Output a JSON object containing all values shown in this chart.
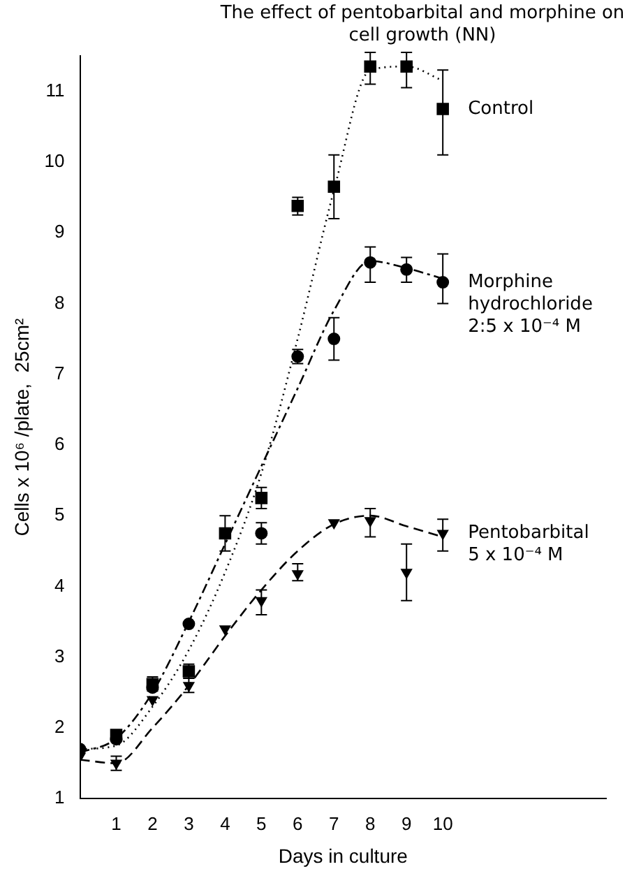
{
  "chart_data": {
    "type": "scatter",
    "title": "The effect of pentobarbital and morphine on cell growth (NN)",
    "xlabel": "Days in culture",
    "ylabel": "Cells x 10⁶ /plate,  25cm²",
    "x": [
      0,
      1,
      2,
      3,
      4,
      5,
      6,
      7,
      8,
      9,
      10
    ],
    "series": [
      {
        "name": "Control",
        "color": "#000000",
        "marker": "square",
        "values": [
          null,
          1.9,
          2.62,
          2.8,
          4.75,
          5.25,
          9.38,
          9.65,
          11.35,
          11.35,
          10.75
        ],
        "errors": [
          null,
          null,
          0.1,
          0.1,
          [
            4.5,
            5.0
          ],
          [
            5.1,
            5.4
          ],
          [
            9.25,
            9.5
          ],
          [
            9.2,
            10.1
          ],
          [
            11.1,
            11.55
          ],
          [
            11.05,
            11.55
          ],
          [
            10.1,
            11.3
          ]
        ]
      },
      {
        "name": "Morphine hydrochloride 2:5 x 10⁻⁴ M",
        "color": "#000000",
        "marker": "circle",
        "values": [
          1.7,
          1.84,
          2.57,
          3.47,
          null,
          4.75,
          7.25,
          7.5,
          8.58,
          8.48,
          8.3
        ],
        "errors": [
          null,
          null,
          null,
          null,
          null,
          [
            4.6,
            4.9
          ],
          [
            7.15,
            7.35
          ],
          [
            7.2,
            7.8
          ],
          [
            8.3,
            8.8
          ],
          [
            8.3,
            8.65
          ],
          [
            8.0,
            8.7
          ]
        ]
      },
      {
        "name": "Pentobarbital 5 x 10⁻⁴ M",
        "color": "#000000",
        "marker": "triangle",
        "values": [
          1.6,
          1.5,
          2.4,
          2.6,
          3.4,
          3.8,
          4.18,
          4.9,
          4.93,
          4.2,
          4.75
        ],
        "errors": [
          null,
          0.1,
          null,
          0.1,
          null,
          [
            3.6,
            3.95
          ],
          [
            4.08,
            4.32
          ],
          null,
          [
            4.7,
            5.1
          ],
          [
            3.8,
            4.6
          ],
          [
            4.5,
            4.95
          ]
        ]
      },
      {
        "type": "line",
        "color": "#000000",
        "marker": "none",
        "line_style": "dotted",
        "x": [
          0,
          1,
          2,
          3,
          4,
          5,
          6,
          7,
          8,
          9,
          10
        ],
        "values": [
          1.7,
          1.75,
          2.3,
          3.1,
          4.2,
          5.6,
          7.5,
          9.6,
          11.3,
          11.35,
          11.15
        ]
      },
      {
        "type": "line",
        "color": "#000000",
        "marker": "none",
        "line_style": "dashdot",
        "x": [
          0,
          1,
          2,
          3,
          4,
          5,
          6,
          7,
          8,
          9,
          10
        ],
        "values": [
          1.65,
          1.85,
          2.5,
          3.5,
          4.6,
          5.7,
          6.8,
          7.9,
          8.6,
          8.5,
          8.35
        ]
      },
      {
        "type": "line",
        "color": "#000000",
        "marker": "none",
        "line_style": "dashed",
        "x": [
          0,
          1,
          2,
          3,
          4,
          5,
          6,
          7,
          8,
          9,
          10
        ],
        "values": [
          1.55,
          1.5,
          2.0,
          2.6,
          3.3,
          3.95,
          4.5,
          4.88,
          5.0,
          4.85,
          4.7
        ]
      }
    ],
    "xlim": [
      0,
      14.5
    ],
    "xticks": [
      1,
      2,
      3,
      4,
      5,
      6,
      7,
      8,
      9,
      10
    ],
    "ylim": [
      1,
      11.5
    ],
    "yticks": [
      1,
      2,
      3,
      4,
      5,
      6,
      7,
      8,
      9,
      10,
      11
    ],
    "grid": false,
    "legend": false
  }
}
